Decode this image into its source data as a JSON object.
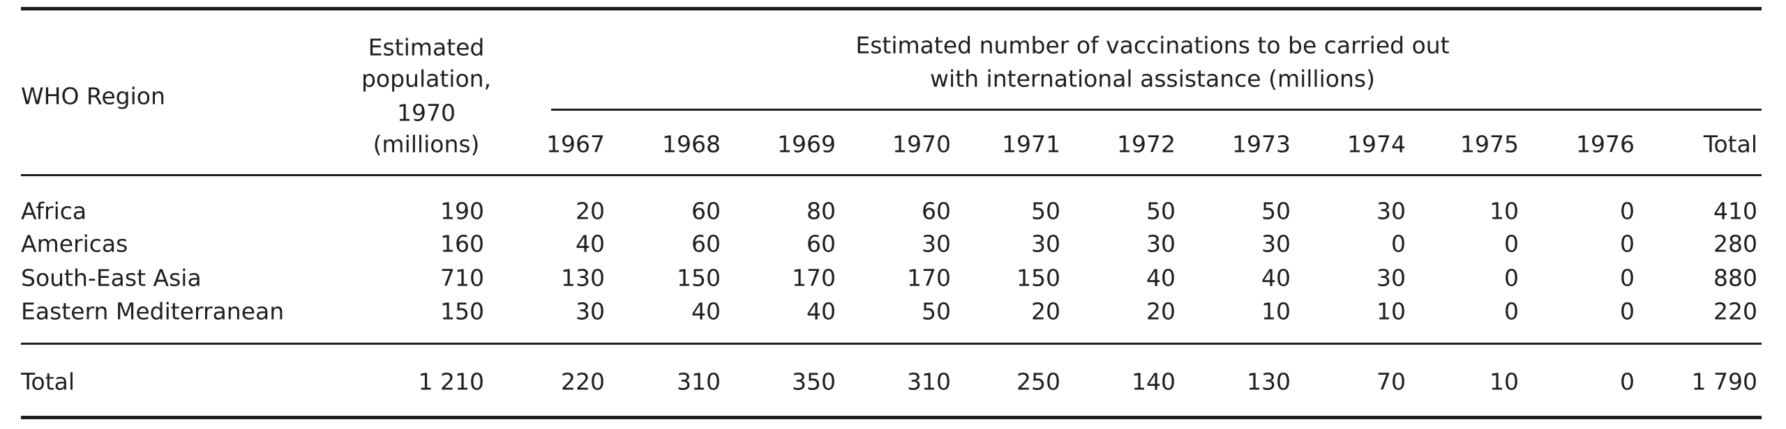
{
  "header": {
    "region": "WHO Region",
    "population": [
      "Estimated",
      "population,",
      "1970",
      "(millions)"
    ],
    "span": [
      "Estimated number of vaccinations to be carried out",
      "with international assistance (millions)"
    ],
    "columns": [
      "1967",
      "1968",
      "1969",
      "1970",
      "1971",
      "1972",
      "1973",
      "1974",
      "1975",
      "1976",
      "Total"
    ]
  },
  "table": {
    "rows": [
      [
        "Africa",
        "190",
        "20",
        "60",
        "80",
        "60",
        "50",
        "50",
        "50",
        "30",
        "10",
        "0",
        "410"
      ],
      [
        "Americas",
        "160",
        "40",
        "60",
        "60",
        "30",
        "30",
        "30",
        "30",
        "0",
        "0",
        "0",
        "280"
      ],
      [
        "South-East Asia",
        "710",
        "130",
        "150",
        "170",
        "170",
        "150",
        "40",
        "40",
        "30",
        "0",
        "0",
        "880"
      ],
      [
        "Eastern Mediterranean",
        "150",
        "30",
        "40",
        "40",
        "50",
        "20",
        "20",
        "10",
        "10",
        "0",
        "0",
        "220"
      ]
    ],
    "total": [
      "Total",
      "1 210",
      "220",
      "310",
      "350",
      "310",
      "250",
      "140",
      "130",
      "70",
      "10",
      "0",
      "1 790"
    ]
  }
}
